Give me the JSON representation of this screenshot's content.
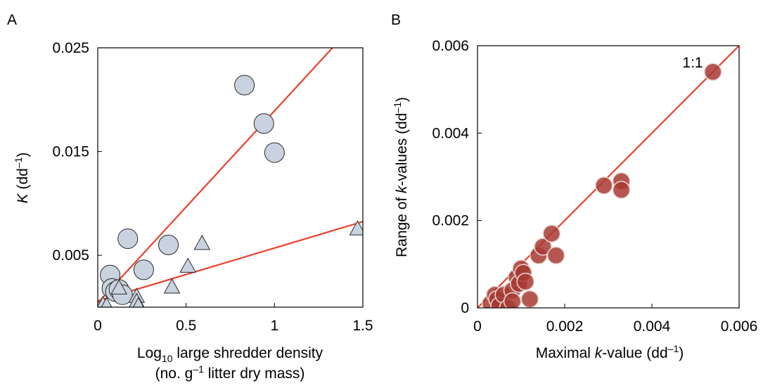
{
  "chart_data": [
    {
      "panel": "A",
      "type": "scatter",
      "xlabel_line1_pre": "Log",
      "xlabel_line1_sub": "10",
      "xlabel_line1_post": " large shredder density",
      "xlabel_line2_pre": "(no. g",
      "xlabel_line2_sup": "–1",
      "xlabel_line2_post": " litter dry mass)",
      "ylabel_main": "K",
      "ylabel_pre": " (dd",
      "ylabel_sup": "–1",
      "ylabel_post": ")",
      "xlim": [
        0,
        1.5
      ],
      "ylim": [
        0,
        0.025
      ],
      "xticks": [
        {
          "value": 0,
          "label": "0"
        },
        {
          "value": 0.5,
          "label": "0.5"
        },
        {
          "value": 1,
          "label": "1"
        },
        {
          "value": 1.5,
          "label": "1.5"
        }
      ],
      "yticks": [
        {
          "value": 0.005,
          "label": "0.005"
        },
        {
          "value": 0.015,
          "label": "0.015"
        },
        {
          "value": 0.025,
          "label": "0.025"
        }
      ],
      "series": [
        {
          "marker": "circle",
          "color": "#c9d3e0",
          "points": [
            {
              "x": 0.07,
              "y": 0.0031
            },
            {
              "x": 0.08,
              "y": 0.0018
            },
            {
              "x": 0.1,
              "y": 0.0015
            },
            {
              "x": 0.12,
              "y": 0.0017
            },
            {
              "x": 0.14,
              "y": 0.0012
            },
            {
              "x": 0.17,
              "y": 0.0066
            },
            {
              "x": 0.26,
              "y": 0.0036
            },
            {
              "x": 0.4,
              "y": 0.006
            },
            {
              "x": 0.83,
              "y": 0.0214
            },
            {
              "x": 0.94,
              "y": 0.0177
            },
            {
              "x": 1.0,
              "y": 0.0149
            }
          ]
        },
        {
          "marker": "triangle",
          "color": "#c9d3e0",
          "points": [
            {
              "x": 0.03,
              "y": 0.0002
            },
            {
              "x": 0.05,
              "y": 0.0001
            },
            {
              "x": 0.12,
              "y": 0.0018
            },
            {
              "x": 0.22,
              "y": 0.001
            },
            {
              "x": 0.22,
              "y": 0.0005
            },
            {
              "x": 0.23,
              "y": 0.0001
            },
            {
              "x": 0.42,
              "y": 0.0019
            },
            {
              "x": 0.51,
              "y": 0.0039
            },
            {
              "x": 0.59,
              "y": 0.0061
            },
            {
              "x": 1.47,
              "y": 0.0075
            }
          ]
        }
      ],
      "lines": [
        {
          "color": "#e8412c",
          "x": [
            0,
            1.35
          ],
          "y": [
            0.0004,
            0.0254
          ]
        },
        {
          "color": "#e8412c",
          "x": [
            0,
            1.55
          ],
          "y": [
            0.0006,
            0.0085
          ]
        }
      ]
    },
    {
      "panel": "B",
      "type": "scatter",
      "xlabel_pre": "Maximal ",
      "xlabel_italic": "k",
      "xlabel_post": "-value (dd",
      "xlabel_sup": "–1",
      "xlabel_end": ")",
      "ylabel_pre": "Range of ",
      "ylabel_italic": "k",
      "ylabel_post": "-values (dd",
      "ylabel_sup": "–1",
      "ylabel_end": ")",
      "annotation": "1:1",
      "xlim": [
        0,
        0.006
      ],
      "ylim": [
        0,
        0.006
      ],
      "xticks": [
        {
          "value": 0,
          "label": "0"
        },
        {
          "value": 0.002,
          "label": "0.002"
        },
        {
          "value": 0.004,
          "label": "0.004"
        },
        {
          "value": 0.006,
          "label": "0.006"
        }
      ],
      "yticks": [
        {
          "value": 0,
          "label": "0"
        },
        {
          "value": 0.002,
          "label": "0.002"
        },
        {
          "value": 0.004,
          "label": "0.004"
        },
        {
          "value": 0.006,
          "label": "0.006"
        }
      ],
      "series": [
        {
          "marker": "circle",
          "color": "#a73a33",
          "points": [
            {
              "x": 0.0003,
              "y": 0.0001
            },
            {
              "x": 0.0004,
              "y": 0.0003
            },
            {
              "x": 0.00045,
              "y": 0.0002
            },
            {
              "x": 0.0005,
              "y": 5e-05
            },
            {
              "x": 0.0006,
              "y": 0.0003
            },
            {
              "x": 0.0007,
              "y": 0.0
            },
            {
              "x": 0.0008,
              "y": 0.0004
            },
            {
              "x": 0.0008,
              "y": 0.00015
            },
            {
              "x": 0.0009,
              "y": 0.0007
            },
            {
              "x": 0.00095,
              "y": 0.00055
            },
            {
              "x": 0.001,
              "y": 0.0009
            },
            {
              "x": 0.00105,
              "y": 0.0008
            },
            {
              "x": 0.0011,
              "y": 0.0006
            },
            {
              "x": 0.0012,
              "y": 0.0002
            },
            {
              "x": 0.0014,
              "y": 0.0012
            },
            {
              "x": 0.0015,
              "y": 0.0014
            },
            {
              "x": 0.0017,
              "y": 0.0017
            },
            {
              "x": 0.0018,
              "y": 0.0012
            },
            {
              "x": 0.0029,
              "y": 0.0028
            },
            {
              "x": 0.0033,
              "y": 0.0029
            },
            {
              "x": 0.0033,
              "y": 0.0027
            },
            {
              "x": 0.0054,
              "y": 0.0054
            }
          ]
        }
      ],
      "lines": [
        {
          "color": "#e8412c",
          "x": [
            0,
            0.006
          ],
          "y": [
            0,
            0.006
          ]
        }
      ]
    }
  ]
}
